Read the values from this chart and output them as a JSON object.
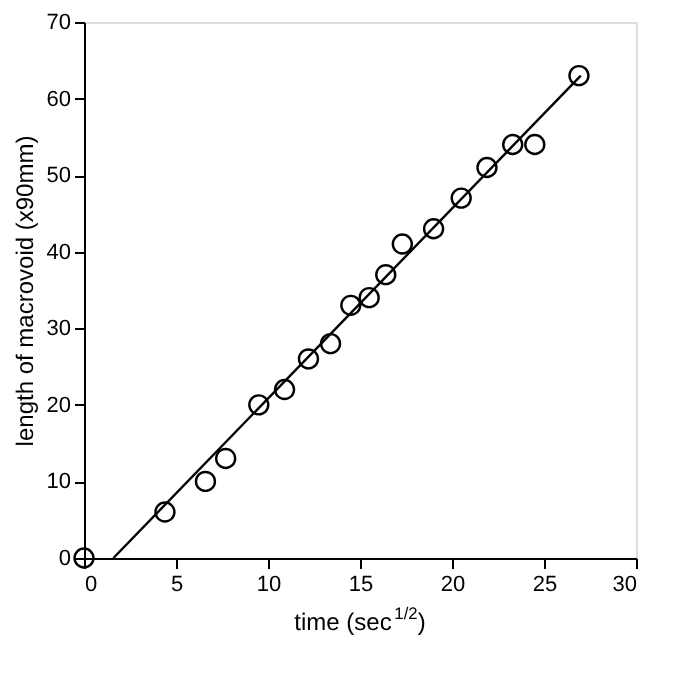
{
  "chart_data": {
    "type": "scatter",
    "xlabel": "time (sec$^{1/2}$)",
    "ylabel": "length of macrovoid (x90mm)",
    "xlim": [
      0,
      30
    ],
    "ylim": [
      0,
      70
    ],
    "xticks": [
      0,
      5,
      10,
      15,
      20,
      25,
      30
    ],
    "yticks": [
      0,
      10,
      20,
      30,
      40,
      50,
      60,
      70
    ],
    "grid": false,
    "legend": false,
    "series": [
      {
        "type": "scatter",
        "marker": "circle",
        "color": "#000000",
        "x": [
          0,
          4.4,
          6.6,
          7.7,
          9.5,
          10.9,
          12.2,
          13.4,
          14.5,
          15.5,
          16.4,
          17.3,
          19.0,
          20.5,
          21.9,
          23.3,
          24.5,
          26.9
        ],
        "values": [
          0,
          6,
          10,
          13,
          20,
          22,
          26,
          28,
          33,
          34,
          37,
          41,
          43,
          47,
          51,
          54,
          54,
          63
        ]
      },
      {
        "type": "line",
        "color": "#000000",
        "line_style": "solid",
        "x": [
          1.6,
          27
        ],
        "values": [
          0,
          63
        ]
      }
    ]
  }
}
